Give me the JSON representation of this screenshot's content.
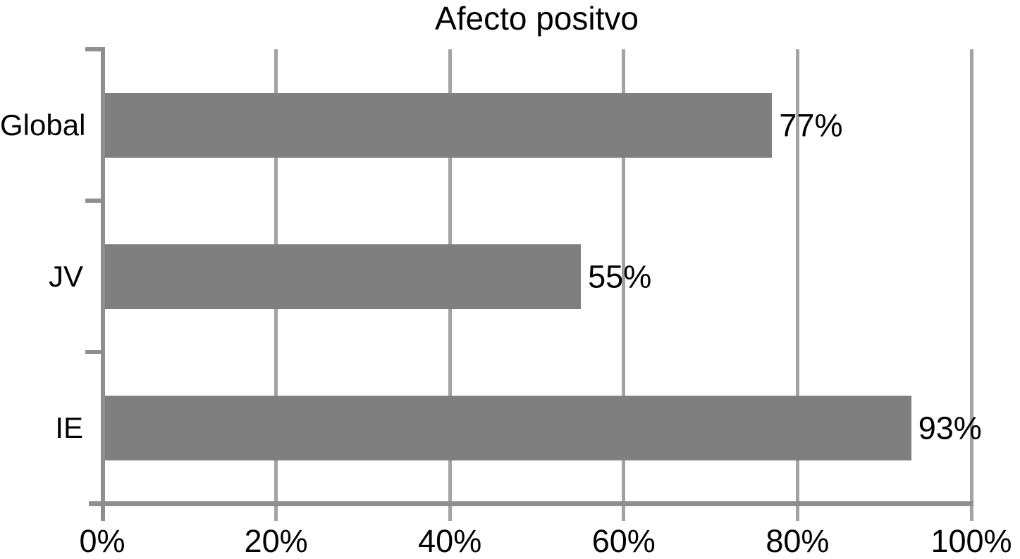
{
  "chart_data": {
    "type": "bar",
    "orientation": "horizontal",
    "title": "Afecto positvo",
    "categories": [
      "Global",
      "JV",
      "IE"
    ],
    "values": [
      77,
      55,
      93
    ],
    "data_labels": [
      "77%",
      "55%",
      "93%"
    ],
    "x_tick_labels": [
      "0%",
      "20%",
      "40%",
      "60%",
      "80%",
      "100%"
    ],
    "x_tick_values": [
      0,
      20,
      40,
      60,
      80,
      100
    ],
    "xlim": [
      0,
      100
    ],
    "xlabel": "",
    "ylabel": "",
    "grid": true,
    "legend": false
  },
  "colors": {
    "bar": "#7f7f7f",
    "gridline": "#a3a3a3",
    "axis": "#8e8e8e",
    "text": "#000000",
    "background": "#ffffff"
  }
}
